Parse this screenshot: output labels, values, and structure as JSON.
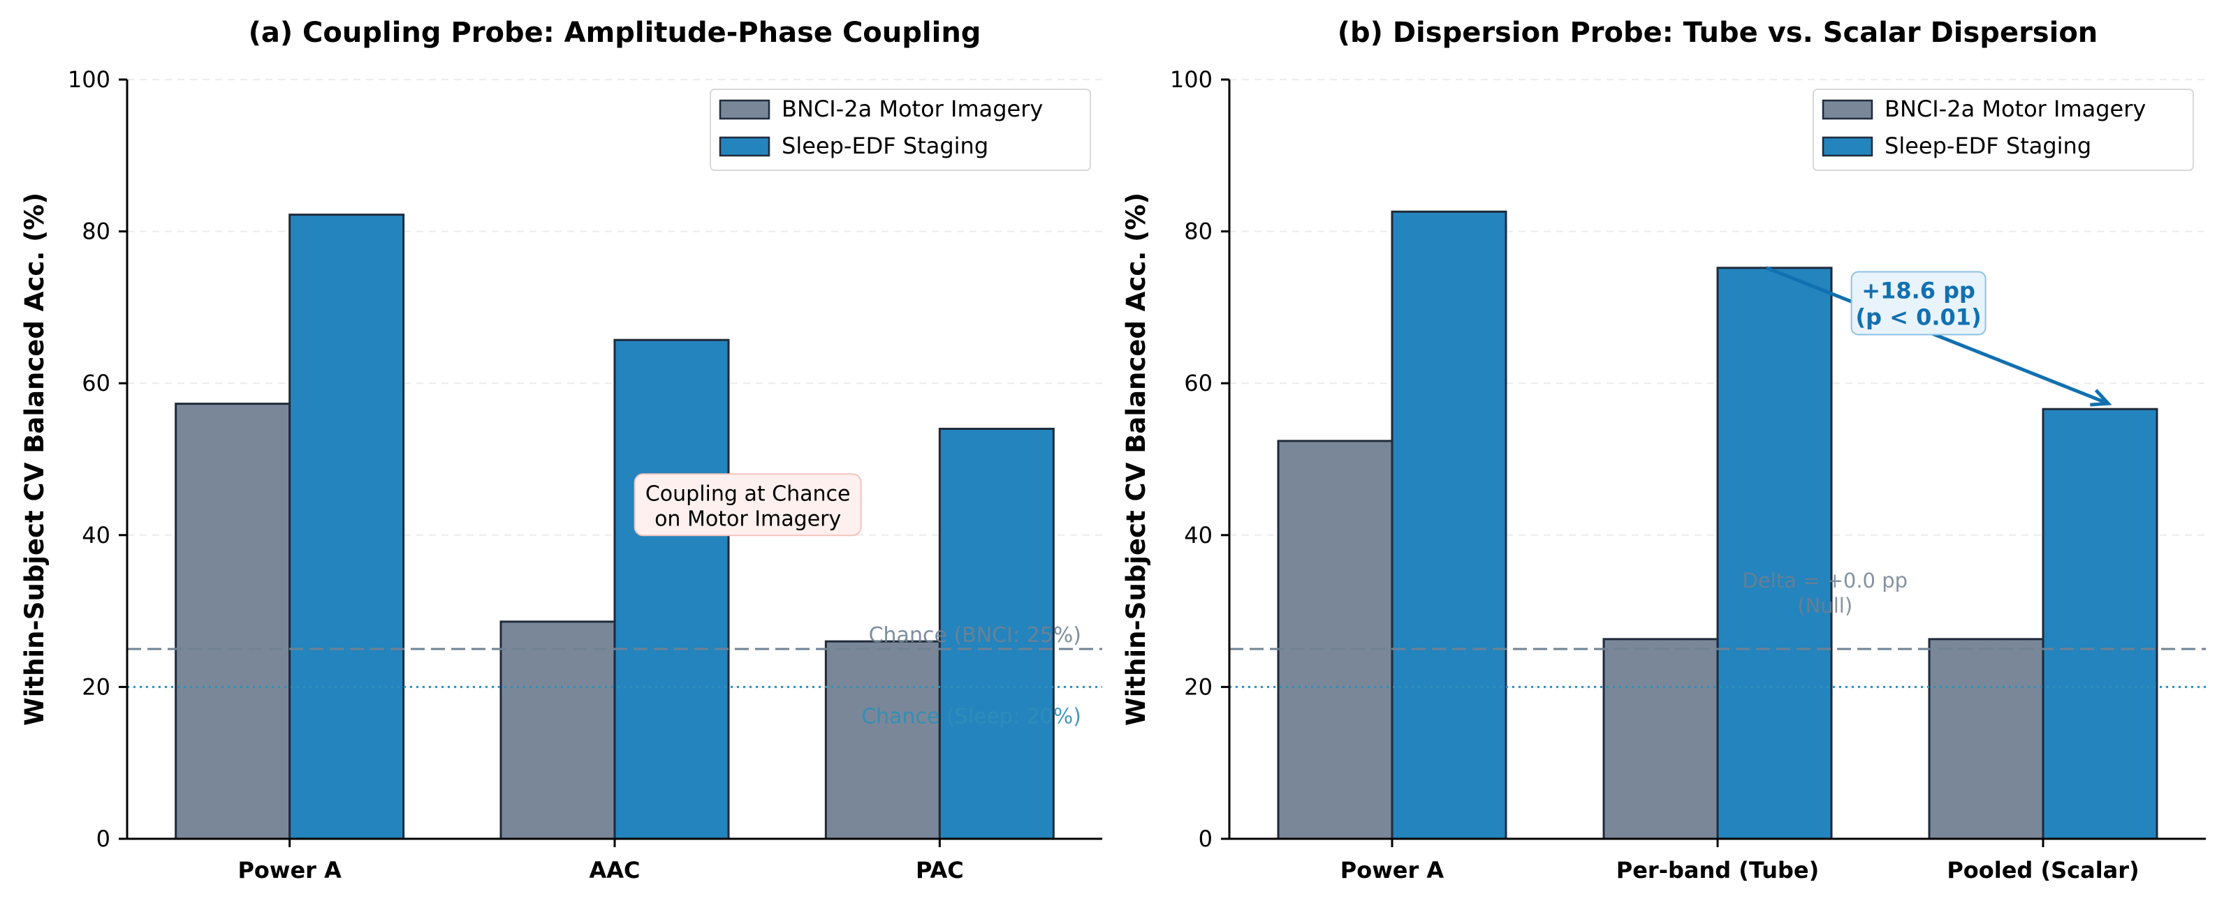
{
  "chart_data": [
    {
      "type": "bar",
      "title": "(a) Coupling Probe: Amplitude-Phase Coupling",
      "ylabel": "Within-Subject CV Balanced Acc. (%)",
      "xlabel": "",
      "ylim": [
        0,
        100
      ],
      "yticks": [
        "0",
        "20",
        "40",
        "60",
        "80",
        "100"
      ],
      "categories": [
        "Power A",
        "AAC",
        "PAC"
      ],
      "series": [
        {
          "name": "BNCI-2a Motor Imagery",
          "values": [
            57.3,
            28.6,
            26.0
          ],
          "color": "#7a8799"
        },
        {
          "name": "Sleep-EDF Staging",
          "values": [
            82.2,
            65.7,
            54.0
          ],
          "color": "#2484bd"
        }
      ],
      "reference_lines": [
        {
          "label": "Chance (BNCI: 25%)",
          "value": 25,
          "style": "dashed",
          "color": "#6f8294"
        },
        {
          "label": "Chance (Sleep: 20%)",
          "value": 20,
          "style": "dotted",
          "color": "#2f8fb8"
        }
      ],
      "annotations": [
        {
          "text_lines": [
            "Coupling at Chance",
            "on Motor Imagery"
          ],
          "x": 1.5,
          "y": 44
        }
      ],
      "legend": "top-right",
      "grid": "y, dashed, light"
    },
    {
      "type": "bar",
      "title": "(b) Dispersion Probe: Tube vs. Scalar Dispersion",
      "ylabel": "Within-Subject CV Balanced Acc. (%)",
      "xlabel": "",
      "ylim": [
        0,
        100
      ],
      "yticks": [
        "0",
        "20",
        "40",
        "60",
        "80",
        "100"
      ],
      "categories": [
        "Power A",
        "Per-band (Tube)",
        "Pooled (Scalar)"
      ],
      "series": [
        {
          "name": "BNCI-2a Motor Imagery",
          "values": [
            52.4,
            26.3,
            26.3
          ],
          "color": "#7a8799"
        },
        {
          "name": "Sleep-EDF Staging",
          "values": [
            82.6,
            75.2,
            56.6
          ],
          "color": "#2484bd"
        }
      ],
      "reference_lines": [
        {
          "value": 25,
          "style": "dashed",
          "color": "#6f8294"
        },
        {
          "value": 20,
          "style": "dotted",
          "color": "#2f8fb8"
        }
      ],
      "annotations": [
        {
          "text_lines": [
            "+18.6 pp",
            "(p < 0.01)"
          ],
          "x": 1.6,
          "y": 71,
          "arrow_from": [
            1.15,
            75.2
          ],
          "arrow_to": [
            2.2,
            56.6
          ]
        },
        {
          "text_lines": [
            "Delta = +0.0 pp",
            "(Null)"
          ],
          "x": 1.33,
          "y": 32
        }
      ],
      "legend": "top-right",
      "grid": "y, dashed, light"
    }
  ]
}
